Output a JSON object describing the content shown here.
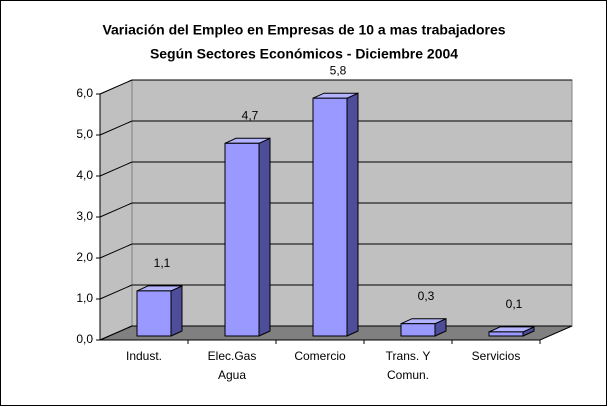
{
  "chart_data": {
    "type": "bar3d",
    "title": [
      "Variación del Empleo en Empresas de 10 a mas trabajadores",
      "Según Sectores Económicos - Diciembre 2004"
    ],
    "categories": [
      [
        "Indust."
      ],
      [
        "Elec.Gas",
        "Agua"
      ],
      [
        "Comercio"
      ],
      [
        "Trans. Y",
        "Comun."
      ],
      [
        "Servicios"
      ]
    ],
    "values": [
      1.1,
      4.7,
      5.8,
      0.3,
      0.1
    ],
    "value_labels": [
      "1,1",
      "4,7",
      "5,8",
      "0,3",
      "0,1"
    ],
    "color": "#9999ff",
    "ylim": [
      0,
      6
    ],
    "yticks": [
      {
        "value": 0,
        "label": "0,0"
      },
      {
        "value": 1,
        "label": "1,0"
      },
      {
        "value": 2,
        "label": "2,0"
      },
      {
        "value": 3,
        "label": "3,0"
      },
      {
        "value": 4,
        "label": "4,0"
      },
      {
        "value": 5,
        "label": "5,0"
      },
      {
        "value": 6,
        "label": "6,0"
      }
    ],
    "grid": true
  }
}
